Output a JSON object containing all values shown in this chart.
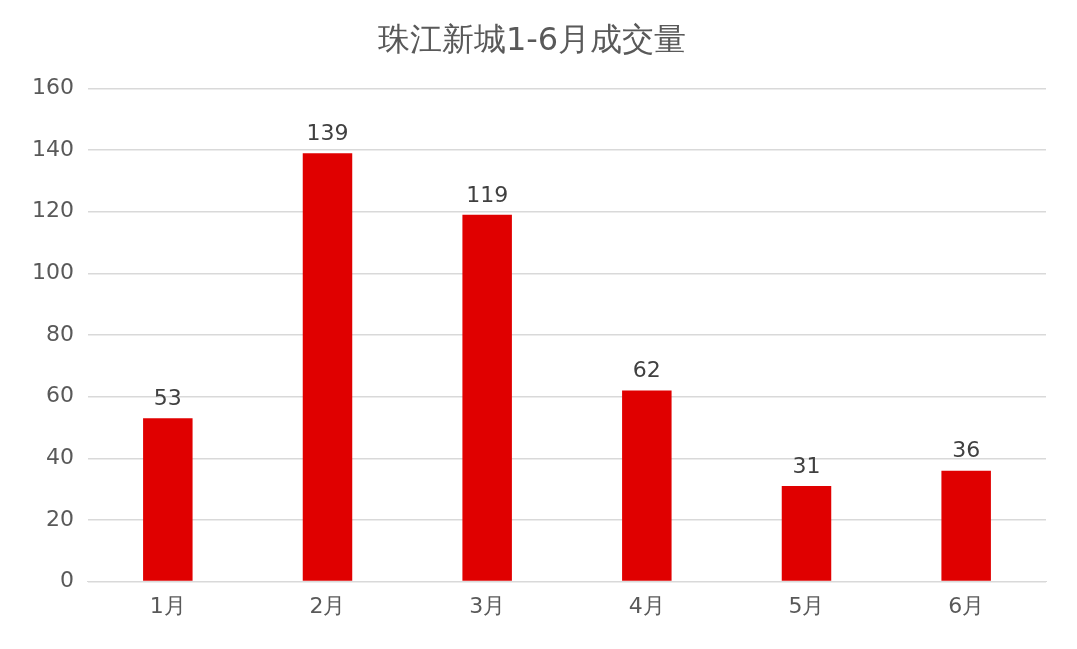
{
  "chart_data": {
    "type": "bar",
    "title": "珠江新城1-6月成交量",
    "categories": [
      "1月",
      "2月",
      "3月",
      "4月",
      "5月",
      "6月"
    ],
    "values": [
      53,
      139,
      119,
      62,
      31,
      36
    ],
    "color": "#e00000",
    "ylim": [
      0,
      160
    ],
    "yticks": [
      0,
      20,
      40,
      60,
      80,
      100,
      120,
      140,
      160
    ],
    "grid": "y",
    "data_labels": true,
    "legend": false
  }
}
